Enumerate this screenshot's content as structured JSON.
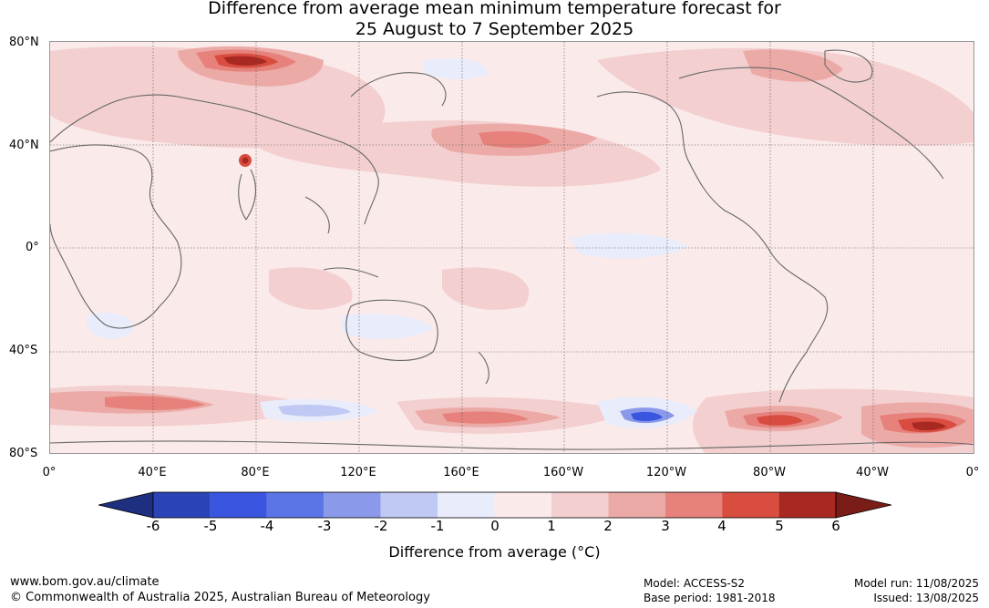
{
  "title_line1": "Difference from average mean minimum temperature forecast for",
  "title_line2": "25 August to 7 September 2025",
  "lat_labels": [
    "80°N",
    "40°N",
    "0°",
    "40°S",
    "80°S"
  ],
  "lon_labels": [
    "0°",
    "40°E",
    "80°E",
    "120°E",
    "160°E",
    "160°W",
    "120°W",
    "80°W",
    "40°W",
    "0°"
  ],
  "colorbar": {
    "ticks": [
      "-6",
      "-5",
      "-4",
      "-3",
      "-2",
      "-1",
      "0",
      "1",
      "2",
      "3",
      "4",
      "5",
      "6"
    ],
    "colors": [
      "#1f2f80",
      "#2a44b8",
      "#3a55e0",
      "#5b75e6",
      "#8a99ea",
      "#c0c8f4",
      "#e9ecfb",
      "#fbeaea",
      "#f3cfcf",
      "#ecaaa7",
      "#e6827b",
      "#d94c40",
      "#a82822",
      "#7a1c18"
    ],
    "label": "Difference from average (°C)"
  },
  "footer": {
    "website": "www.bom.gov.au/climate",
    "copyright": "© Commonwealth of Australia 2025, Australian Bureau of Meteorology",
    "model": "Model: ACCESS-S2",
    "base_period": "Base period: 1981-2018",
    "model_run": "Model run: 11/08/2025",
    "issued": "Issued: 13/08/2025"
  }
}
